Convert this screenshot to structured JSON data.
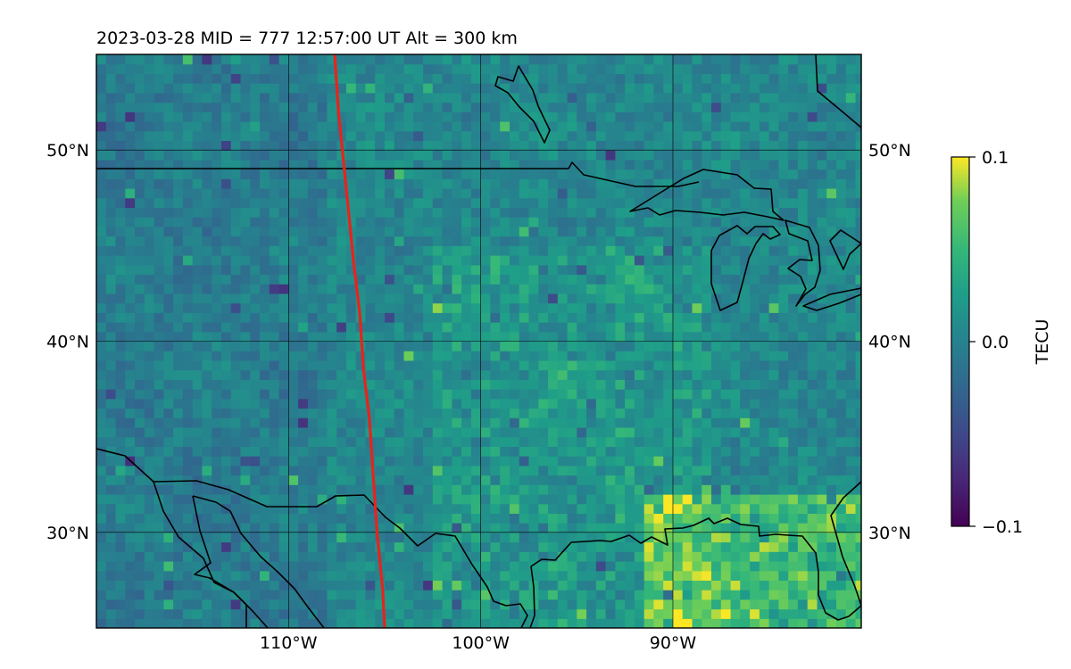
{
  "chart_data": {
    "type": "heatmap",
    "title": "2023-03-28  MID = 777    12:57:00  UT  Alt = 300 km",
    "projection": "plate carree map of central North America",
    "extent": {
      "lon": [
        -120,
        -80.2
      ],
      "lat": [
        25,
        55
      ]
    },
    "xticks": [
      {
        "value": -110,
        "label": "110°W"
      },
      {
        "value": -100,
        "label": "100°W"
      },
      {
        "value": -90,
        "label": "90°W"
      }
    ],
    "yticks": [
      {
        "value": 30,
        "label": "30°N"
      },
      {
        "value": 40,
        "label": "40°N"
      },
      {
        "value": 50,
        "label": "50°N"
      }
    ],
    "grid": true,
    "colorbar": {
      "label": "TECU",
      "colormap": "viridis",
      "vmin": -0.1,
      "vmax": 0.1,
      "ticks": [
        {
          "value": 0.1,
          "label": "0.1"
        },
        {
          "value": 0.0,
          "label": "0.0"
        },
        {
          "value": -0.1,
          "label": "−0.1"
        }
      ]
    },
    "field_description_ranges": {
      "west": "mostly near 0.0 to slightly negative",
      "central_plains": "0.0 to +0.05",
      "southeast_gulf": "up to +0.1"
    },
    "track": {
      "color": "#e8231c",
      "points": [
        [
          -107.6,
          55
        ],
        [
          -107.4,
          52
        ],
        [
          -107.2,
          50
        ],
        [
          -106.9,
          47
        ],
        [
          -106.6,
          44
        ],
        [
          -106.3,
          41.5
        ],
        [
          -106.1,
          38.5
        ],
        [
          -105.8,
          36
        ],
        [
          -105.6,
          33
        ],
        [
          -105.4,
          30
        ],
        [
          -105.1,
          27
        ],
        [
          -105.0,
          25
        ]
      ]
    },
    "coastline_color": "#000000"
  }
}
